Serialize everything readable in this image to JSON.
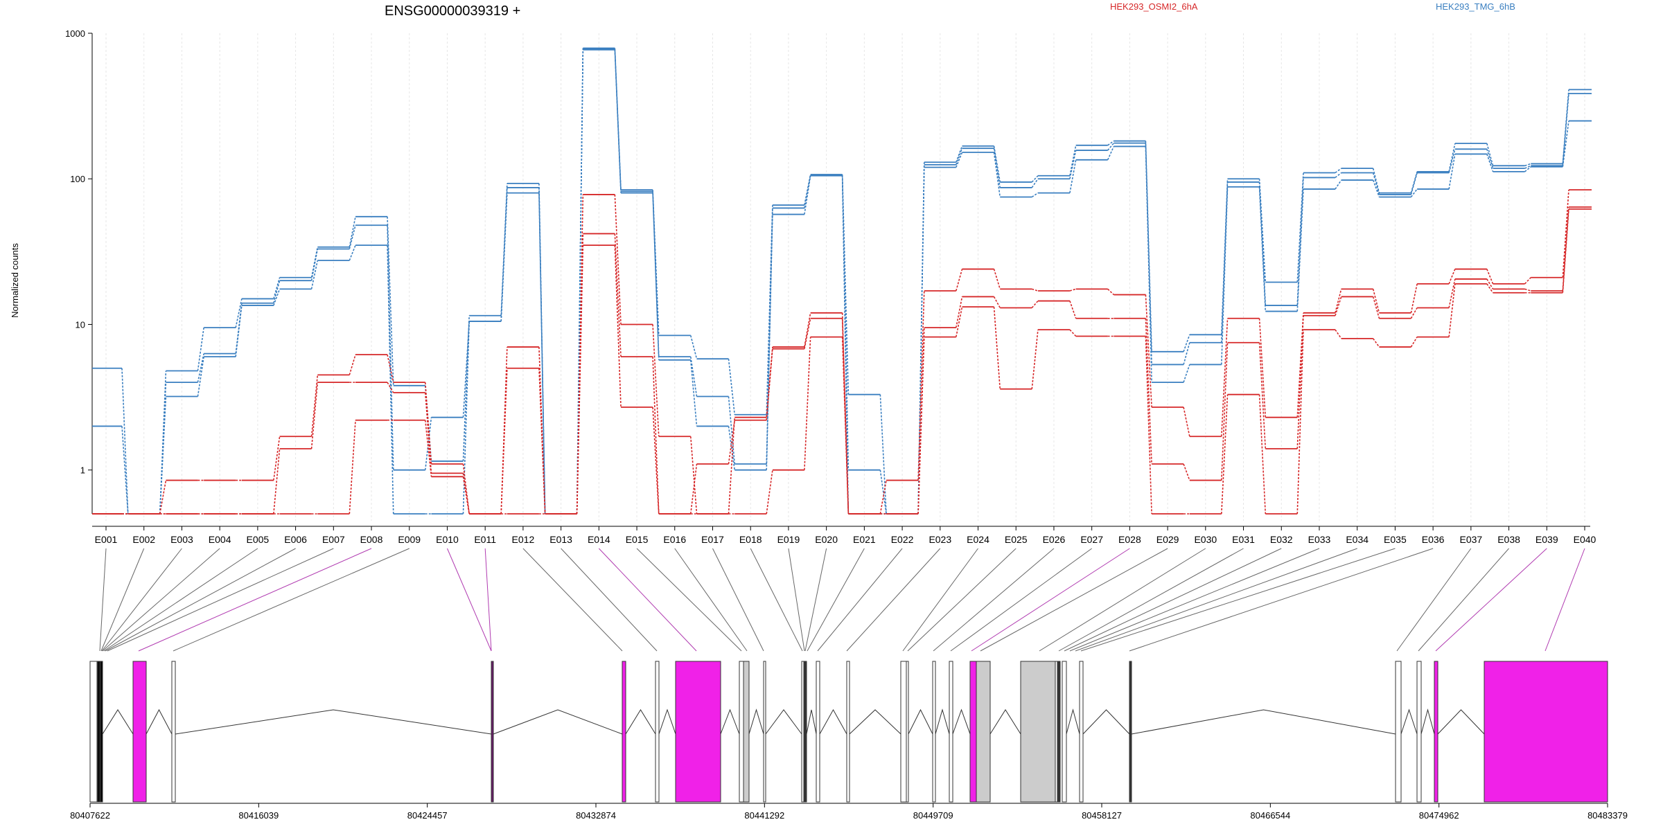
{
  "chart_data": {
    "type": "line",
    "title": "ENSG00000039319 +",
    "ylabel": "Normalized counts",
    "yscale": "log",
    "ylim": [
      0.5,
      1000
    ],
    "yticks": [
      1,
      10,
      100,
      1000
    ],
    "ytick_labels": [
      "1",
      "10",
      "100",
      "1000"
    ],
    "categories": [
      "E001",
      "E002",
      "E003",
      "E004",
      "E005",
      "E006",
      "E007",
      "E008",
      "E009",
      "E010",
      "E011",
      "E012",
      "E013",
      "E014",
      "E015",
      "E016",
      "E017",
      "E018",
      "E019",
      "E020",
      "E021",
      "E022",
      "E023",
      "E024",
      "E025",
      "E026",
      "E027",
      "E028",
      "E029",
      "E030",
      "E031",
      "E032",
      "E033",
      "E034",
      "E035",
      "E036",
      "E037",
      "E038",
      "E039",
      "E040"
    ],
    "legend": [
      {
        "name": "HEK293_OSMI2_6hA",
        "color": "#d62728"
      },
      {
        "name": "HEK293_TMG_6hB",
        "color": "#3a7fc0"
      }
    ],
    "series": [
      {
        "group": "HEK293_TMG_6hB",
        "color": "#3a7fc0",
        "values": [
          5.0,
          0.5,
          4.8,
          9.5,
          15.0,
          21.0,
          34.0,
          55.0,
          3.8,
          1.15,
          11.5,
          93.0,
          0.5,
          790.0,
          84.0,
          8.4,
          5.8,
          2.4,
          66.0,
          107.0,
          3.3,
          0.5,
          130.0,
          168.0,
          95.0,
          105.0,
          170.0,
          182.0,
          6.5,
          8.5,
          100.0,
          19.5,
          110.0,
          118.0,
          80.0,
          112.0,
          175.0,
          123.0,
          127.0,
          410.0
        ]
      },
      {
        "group": "HEK293_TMG_6hB",
        "color": "#3a7fc0",
        "values": [
          2.0,
          0.5,
          4.0,
          6.3,
          14.0,
          20.0,
          33.0,
          48.0,
          1.0,
          2.3,
          10.5,
          87.0,
          0.5,
          780.0,
          82.0,
          6.0,
          3.2,
          1.1,
          63.0,
          106.0,
          1.0,
          0.5,
          125.0,
          162.0,
          87.0,
          100.0,
          157.0,
          176.0,
          5.3,
          7.5,
          95.0,
          13.5,
          102.0,
          110.0,
          78.0,
          110.0,
          160.0,
          118.0,
          123.0,
          385.0
        ]
      },
      {
        "group": "HEK293_TMG_6hB",
        "color": "#3a7fc0",
        "values": [
          0.5,
          0.5,
          3.2,
          6.0,
          13.5,
          17.5,
          27.5,
          35.0,
          0.5,
          0.5,
          10.5,
          80.0,
          0.5,
          770.0,
          80.0,
          5.7,
          2.0,
          1.0,
          57.0,
          105.0,
          0.5,
          0.5,
          120.0,
          152.0,
          75.0,
          80.0,
          135.0,
          167.0,
          4.0,
          5.3,
          88.0,
          12.3,
          85.0,
          98.0,
          75.0,
          85.0,
          148.0,
          112.0,
          121.0,
          250.0
        ]
      },
      {
        "group": "HEK293_OSMI2_6hA",
        "color": "#d62728",
        "values": [
          0.5,
          0.5,
          0.85,
          0.85,
          0.85,
          1.7,
          4.5,
          6.2,
          4.0,
          1.1,
          0.5,
          7.0,
          0.5,
          78.0,
          10.0,
          1.7,
          0.5,
          2.3,
          7.0,
          12.0,
          0.5,
          0.85,
          17.0,
          24.0,
          17.5,
          17.0,
          17.5,
          16.0,
          2.7,
          1.7,
          11.0,
          2.3,
          12.0,
          17.5,
          12.0,
          19.0,
          24.0,
          19.0,
          21.0,
          84.0
        ]
      },
      {
        "group": "HEK293_OSMI2_6hA",
        "color": "#d62728",
        "values": [
          0.5,
          0.5,
          0.5,
          0.5,
          0.5,
          1.4,
          4.0,
          4.0,
          3.4,
          0.95,
          0.5,
          5.0,
          0.5,
          42.0,
          6.0,
          0.5,
          1.1,
          2.2,
          6.8,
          11.0,
          0.5,
          0.5,
          9.5,
          15.5,
          13.0,
          14.5,
          11.0,
          11.0,
          1.1,
          0.85,
          7.5,
          1.4,
          11.5,
          15.5,
          11.0,
          13.0,
          20.5,
          17.5,
          17.0,
          64.0
        ]
      },
      {
        "group": "HEK293_OSMI2_6hA",
        "color": "#d62728",
        "values": [
          0.5,
          0.5,
          0.5,
          0.5,
          0.5,
          0.5,
          0.5,
          2.2,
          2.2,
          0.9,
          0.5,
          0.5,
          0.5,
          35.0,
          2.7,
          0.5,
          0.5,
          0.5,
          1.0,
          8.2,
          0.5,
          0.5,
          8.2,
          13.2,
          3.6,
          9.2,
          8.3,
          8.3,
          0.5,
          0.5,
          3.3,
          0.5,
          9.2,
          8.0,
          7.0,
          8.2,
          19.0,
          16.5,
          16.5,
          62.0
        ]
      }
    ],
    "gene_model": {
      "genomic_ticks": [
        "80407622",
        "80416039",
        "80424457",
        "80432874",
        "80441292",
        "80449709",
        "80458127",
        "80466544",
        "80474962",
        "80483379"
      ],
      "highlight_color": "#f021e8",
      "constitutive_color": "#cccccc"
    }
  }
}
